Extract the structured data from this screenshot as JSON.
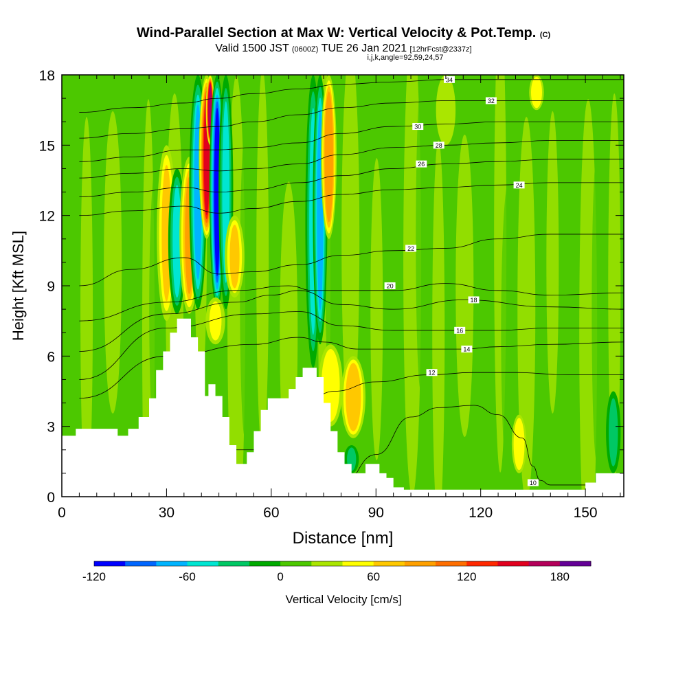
{
  "title": {
    "main": "Wind-Parallel Section at Max W: Vertical Velocity & Pot.Temp.",
    "copyright": "(C)",
    "valid_prefix": "Valid 1500 JST",
    "valid_utc": "(0600Z)",
    "valid_date": "TUE 26 Jan 2021",
    "forecast": "[12hrFcst@2337z]",
    "indices": "i,j,k,angle=92,59,24,57"
  },
  "chart_data": {
    "type": "heatmap",
    "xlabel": "Distance [nm]",
    "ylabel": "Height [Kft MSL]",
    "xlim": [
      0,
      161
    ],
    "ylim": [
      0,
      18
    ],
    "x_ticks": [
      0,
      30,
      60,
      90,
      120,
      150
    ],
    "y_ticks": [
      0,
      3,
      6,
      9,
      12,
      15,
      18
    ],
    "colorbar": {
      "label": "Vertical Velocity [cm/s]",
      "min": -120,
      "max": 200,
      "step": 20,
      "tick_values": [
        -120,
        -60,
        0,
        60,
        120,
        180
      ],
      "colors": [
        "#0000ff",
        "#0066ff",
        "#00b4ff",
        "#00e6d2",
        "#00c864",
        "#00aa00",
        "#4cc800",
        "#aae600",
        "#ffff00",
        "#ffc800",
        "#ffa000",
        "#ff6e00",
        "#ff2800",
        "#e1001e",
        "#b4005a",
        "#640096"
      ]
    },
    "terrain_profile": {
      "x": [
        0,
        4,
        8,
        12,
        16,
        19,
        22,
        25,
        27,
        29,
        31,
        33,
        35,
        37,
        39,
        41,
        42,
        44,
        46,
        48,
        50,
        51,
        53,
        55,
        57,
        59,
        61,
        63,
        65,
        67,
        69,
        71,
        73,
        75,
        77,
        79,
        81,
        83,
        85,
        87,
        89,
        91,
        93,
        95,
        98,
        102,
        110,
        120,
        130,
        140,
        148,
        150,
        153,
        156,
        161
      ],
      "height": [
        2.6,
        2.9,
        2.9,
        2.9,
        2.6,
        2.9,
        3.4,
        4.2,
        5.4,
        6.2,
        7.0,
        7.6,
        7.6,
        6.8,
        6.2,
        4.3,
        4.8,
        4.3,
        3.4,
        2.2,
        1.4,
        1.4,
        1.9,
        2.8,
        3.7,
        4.2,
        4.2,
        4.2,
        4.6,
        5.1,
        5.5,
        5.5,
        5.1,
        4.0,
        2.8,
        1.9,
        1.4,
        1.0,
        1.0,
        1.4,
        1.4,
        1.0,
        0.8,
        0.4,
        0.3,
        0.3,
        0.3,
        0.3,
        0.3,
        0.3,
        0.3,
        0.6,
        1.0,
        1.0,
        1.0
      ]
    },
    "vertical_velocity_features": [
      {
        "x": 30,
        "bottom": 7.5,
        "top": 15.0,
        "width": 2.0,
        "peak": 60
      },
      {
        "x": 33,
        "bottom": 7.8,
        "top": 14.0,
        "width": 1.8,
        "peak": -60
      },
      {
        "x": 36.5,
        "bottom": 7.8,
        "top": 14.5,
        "width": 2.0,
        "peak": 80
      },
      {
        "x": 39,
        "bottom": 8.0,
        "top": 18.0,
        "width": 1.8,
        "peak": -70
      },
      {
        "x": 41.5,
        "bottom": 11.0,
        "top": 18.0,
        "width": 1.6,
        "peak": 140
      },
      {
        "x": 42.5,
        "bottom": 15.0,
        "top": 18.0,
        "width": 0.9,
        "peak": 170
      },
      {
        "x": 44.5,
        "bottom": 8.0,
        "top": 18.0,
        "width": 1.6,
        "peak": -110
      },
      {
        "x": 47,
        "bottom": 8.0,
        "top": 18.0,
        "width": 1.5,
        "peak": -50
      },
      {
        "x": 49.5,
        "bottom": 8.5,
        "top": 12.0,
        "width": 2.0,
        "peak": 60
      },
      {
        "x": 72,
        "bottom": 5.5,
        "top": 18.0,
        "width": 1.6,
        "peak": -60
      },
      {
        "x": 74,
        "bottom": 6.5,
        "top": 18.0,
        "width": 1.5,
        "peak": -80
      },
      {
        "x": 76.5,
        "bottom": 11.0,
        "top": 18.0,
        "width": 1.6,
        "peak": 90
      },
      {
        "x": 77,
        "bottom": 3.0,
        "top": 6.5,
        "width": 2.5,
        "peak": 50
      },
      {
        "x": 83.5,
        "bottom": 2.5,
        "top": 6.0,
        "width": 2.5,
        "peak": 75
      },
      {
        "x": 83,
        "bottom": 1.0,
        "top": 2.2,
        "width": 1.5,
        "peak": -40
      },
      {
        "x": 44,
        "bottom": 6.5,
        "top": 8.5,
        "width": 2.0,
        "peak": 40
      },
      {
        "x": 110,
        "bottom": 15.0,
        "top": 18.0,
        "width": 2.0,
        "peak": 30
      },
      {
        "x": 136,
        "bottom": 16.5,
        "top": 18.0,
        "width": 1.5,
        "peak": 50
      },
      {
        "x": 131,
        "bottom": 1.0,
        "top": 3.5,
        "width": 1.5,
        "peak": 45
      },
      {
        "x": 158,
        "bottom": 1.0,
        "top": 4.5,
        "width": 1.5,
        "peak": -30
      }
    ],
    "isentropes": [
      {
        "label": "10",
        "x": [
          5,
          30,
          60,
          80,
          90,
          100,
          108,
          118,
          125,
          132,
          135,
          137,
          140,
          145,
          161
        ],
        "y": [
          0.5,
          0.5,
          0.5,
          0.5,
          1.8,
          3.4,
          3.8,
          3.9,
          3.5,
          2.5,
          1.3,
          0.7,
          0.5,
          0.5,
          0.5
        ],
        "label_at": [
          135,
          0.6
        ]
      },
      {
        "label": "12",
        "x": [
          5,
          30,
          60,
          78,
          90,
          105,
          118,
          130,
          145,
          161
        ],
        "y": [
          2.0,
          2.0,
          2.0,
          4.5,
          4.9,
          5.2,
          5.3,
          5.3,
          5.2,
          5.2
        ],
        "label_at": [
          106,
          5.3
        ]
      },
      {
        "label": "14",
        "x": [
          5,
          30,
          55,
          68,
          75,
          85,
          100,
          115,
          125,
          140,
          161
        ],
        "y": [
          4.2,
          6.0,
          6.5,
          6.8,
          6.6,
          6.3,
          6.3,
          6.3,
          6.4,
          6.5,
          6.6
        ],
        "label_at": [
          116,
          6.3
        ]
      },
      {
        "label": "16",
        "x": [
          5,
          30,
          55,
          68,
          80,
          95,
          110,
          125,
          140,
          161
        ],
        "y": [
          5.0,
          7.2,
          7.8,
          7.9,
          7.3,
          7.1,
          7.1,
          7.1,
          7.2,
          7.2
        ],
        "label_at": [
          114,
          7.1
        ]
      },
      {
        "label": "18",
        "x": [
          5,
          30,
          50,
          60,
          68,
          80,
          95,
          115,
          140,
          161
        ],
        "y": [
          6.2,
          7.8,
          8.3,
          8.6,
          8.8,
          8.2,
          8.0,
          8.4,
          8.1,
          8.0
        ],
        "label_at": [
          118,
          8.4
        ]
      },
      {
        "label": "20",
        "x": [
          5,
          30,
          50,
          65,
          72,
          80,
          95,
          110,
          125,
          140,
          161
        ],
        "y": [
          7.5,
          8.3,
          8.8,
          9.0,
          8.8,
          8.8,
          8.8,
          9.1,
          8.8,
          8.6,
          8.7
        ],
        "label_at": [
          94,
          9.0
        ]
      },
      {
        "label": "22",
        "x": [
          5,
          20,
          35,
          45,
          55,
          68,
          80,
          95,
          110,
          125,
          140,
          161
        ],
        "y": [
          9.0,
          9.7,
          10.2,
          9.5,
          9.6,
          9.9,
          10.3,
          10.5,
          10.6,
          11.0,
          11.2,
          11.2
        ],
        "label_at": [
          100,
          10.6
        ]
      },
      {
        "label": "24",
        "x": [
          5,
          20,
          35,
          45,
          55,
          68,
          80,
          95,
          110,
          125,
          140,
          161
        ],
        "y": [
          12.0,
          12.2,
          12.4,
          12.1,
          12.3,
          12.6,
          12.9,
          13.1,
          13.2,
          13.3,
          13.4,
          13.4
        ],
        "label_at": [
          131,
          13.3
        ]
      },
      {
        "label": "26",
        "x": [
          5,
          20,
          35,
          45,
          55,
          68,
          80,
          95,
          110,
          125,
          140,
          161
        ],
        "y": [
          12.8,
          13.0,
          13.2,
          13.0,
          13.1,
          13.4,
          13.7,
          14.0,
          14.2,
          14.3,
          14.4,
          14.4
        ],
        "label_at": [
          103,
          14.2
        ]
      },
      {
        "label": "28",
        "x": [
          5,
          20,
          35,
          45,
          55,
          68,
          80,
          95,
          110,
          125,
          140,
          161
        ],
        "y": [
          13.6,
          13.8,
          14.0,
          13.9,
          14.0,
          14.2,
          14.6,
          14.9,
          15.0,
          15.1,
          15.2,
          15.2
        ],
        "label_at": [
          108,
          15.0
        ]
      },
      {
        "label": "30",
        "x": [
          5,
          20,
          35,
          45,
          55,
          68,
          80,
          95,
          110,
          125,
          140,
          161
        ],
        "y": [
          14.3,
          14.5,
          14.8,
          14.8,
          14.9,
          15.1,
          15.5,
          15.8,
          15.9,
          16.0,
          16.0,
          16.0
        ],
        "label_at": [
          102,
          15.8
        ]
      },
      {
        "label": "32",
        "x": [
          5,
          20,
          35,
          45,
          55,
          68,
          80,
          95,
          110,
          125,
          140,
          161
        ],
        "y": [
          15.3,
          15.5,
          15.7,
          15.8,
          16.0,
          16.3,
          16.6,
          16.8,
          16.9,
          16.9,
          16.9,
          16.9
        ],
        "label_at": [
          123,
          16.9
        ]
      },
      {
        "label": "34",
        "x": [
          5,
          20,
          35,
          45,
          55,
          68,
          80,
          95,
          110,
          125,
          140,
          161
        ],
        "y": [
          16.4,
          16.6,
          16.8,
          17.0,
          17.2,
          17.4,
          17.6,
          17.7,
          17.8,
          17.8,
          17.8,
          17.8
        ],
        "label_at": [
          111,
          17.8
        ]
      }
    ]
  }
}
